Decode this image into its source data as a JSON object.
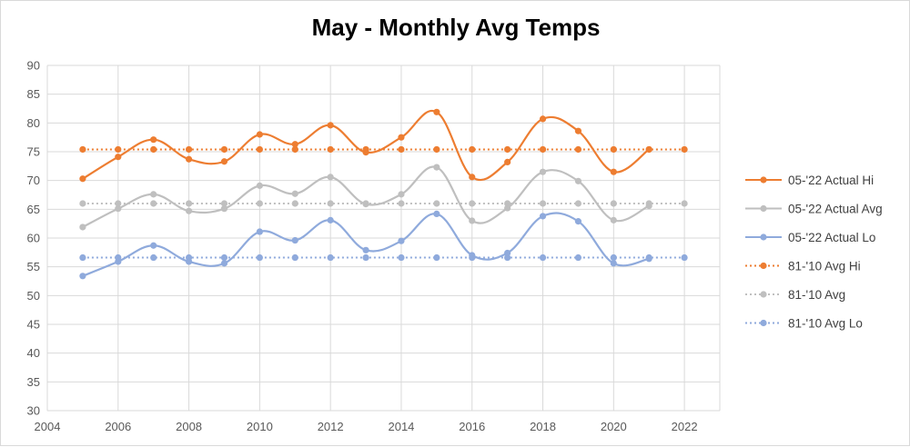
{
  "chart_data": {
    "type": "line",
    "title": "May - Monthly Avg Temps",
    "xlabel": "",
    "ylabel": "",
    "xlim": [
      2004,
      2023
    ],
    "ylim": [
      30,
      90
    ],
    "x_ticks": [
      2004,
      2006,
      2008,
      2010,
      2012,
      2014,
      2016,
      2018,
      2020,
      2022
    ],
    "y_ticks": [
      30,
      35,
      40,
      45,
      50,
      55,
      60,
      65,
      70,
      75,
      80,
      85,
      90
    ],
    "grid": true,
    "legend_position": "right",
    "series": [
      {
        "name": "05-'22 Actual Hi",
        "color": "#ED7D31",
        "style": "smooth-solid",
        "x": [
          2005,
          2006,
          2007,
          2008,
          2009,
          2010,
          2011,
          2012,
          2013,
          2014,
          2015,
          2016,
          2017,
          2018,
          2019,
          2020,
          2021
        ],
        "y": [
          70.3,
          74.1,
          77.1,
          73.7,
          73.3,
          78.0,
          76.3,
          79.6,
          74.9,
          77.5,
          81.9,
          70.6,
          73.2,
          80.7,
          78.6,
          71.5,
          75.4
        ]
      },
      {
        "name": "05-'22 Actual Avg",
        "color": "#BFBFBF",
        "style": "smooth-solid",
        "x": [
          2005,
          2006,
          2007,
          2008,
          2009,
          2010,
          2011,
          2012,
          2013,
          2014,
          2015,
          2016,
          2017,
          2018,
          2019,
          2020,
          2021
        ],
        "y": [
          61.9,
          65.1,
          67.6,
          64.7,
          65.1,
          69.1,
          67.7,
          70.6,
          65.9,
          67.6,
          72.3,
          63.0,
          65.2,
          71.5,
          69.9,
          63.1,
          65.6
        ]
      },
      {
        "name": "05-'22 Actual Lo",
        "color": "#8FAADC",
        "style": "smooth-solid",
        "x": [
          2005,
          2006,
          2007,
          2008,
          2009,
          2010,
          2011,
          2012,
          2013,
          2014,
          2015,
          2016,
          2017,
          2018,
          2019,
          2020,
          2021
        ],
        "y": [
          53.4,
          55.9,
          58.7,
          55.9,
          55.6,
          61.1,
          59.6,
          63.1,
          57.9,
          59.5,
          64.2,
          57.0,
          57.4,
          63.8,
          62.9,
          55.6,
          56.4
        ]
      },
      {
        "name": "81-'10 Avg Hi",
        "color": "#ED7D31",
        "style": "dotted",
        "x": [
          2005,
          2006,
          2007,
          2008,
          2009,
          2010,
          2011,
          2012,
          2013,
          2014,
          2015,
          2016,
          2017,
          2018,
          2019,
          2020,
          2021,
          2022
        ],
        "y": [
          75.4,
          75.4,
          75.4,
          75.4,
          75.4,
          75.4,
          75.4,
          75.4,
          75.4,
          75.4,
          75.4,
          75.4,
          75.4,
          75.4,
          75.4,
          75.4,
          75.4,
          75.4
        ]
      },
      {
        "name": "81-'10 Avg",
        "color": "#BFBFBF",
        "style": "dotted",
        "x": [
          2005,
          2006,
          2007,
          2008,
          2009,
          2010,
          2011,
          2012,
          2013,
          2014,
          2015,
          2016,
          2017,
          2018,
          2019,
          2020,
          2021,
          2022
        ],
        "y": [
          66.0,
          66.0,
          66.0,
          66.0,
          66.0,
          66.0,
          66.0,
          66.0,
          66.0,
          66.0,
          66.0,
          66.0,
          66.0,
          66.0,
          66.0,
          66.0,
          66.0,
          66.0
        ]
      },
      {
        "name": "81-'10 Avg Lo",
        "color": "#8FAADC",
        "style": "dotted",
        "x": [
          2005,
          2006,
          2007,
          2008,
          2009,
          2010,
          2011,
          2012,
          2013,
          2014,
          2015,
          2016,
          2017,
          2018,
          2019,
          2020,
          2021,
          2022
        ],
        "y": [
          56.6,
          56.6,
          56.6,
          56.6,
          56.6,
          56.6,
          56.6,
          56.6,
          56.6,
          56.6,
          56.6,
          56.6,
          56.6,
          56.6,
          56.6,
          56.6,
          56.6,
          56.6
        ]
      }
    ]
  }
}
